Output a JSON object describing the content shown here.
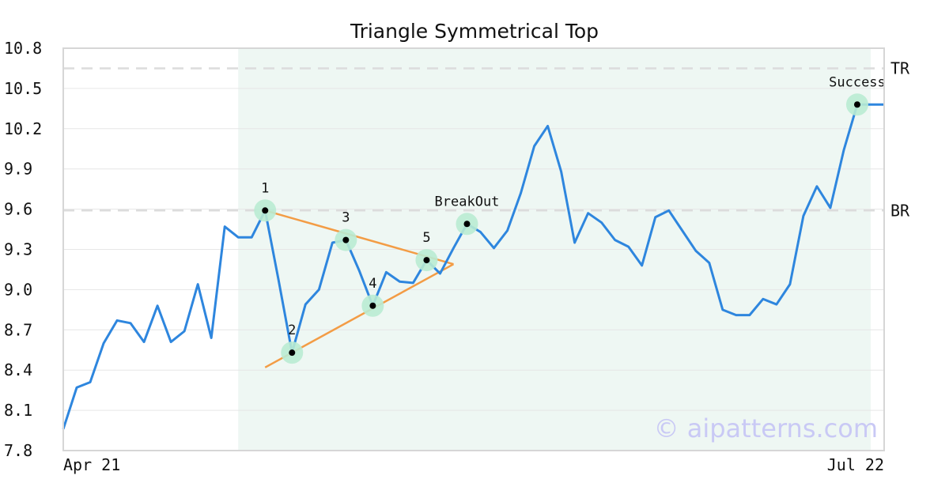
{
  "chart_data": {
    "type": "line",
    "title": "Triangle Symmetrical Top",
    "xlabel": "",
    "ylabel": "",
    "ylim": [
      7.8,
      10.8
    ],
    "yticks": [
      "7.8",
      "8.1",
      "8.4",
      "8.7",
      "9.0",
      "9.3",
      "9.6",
      "9.9",
      "10.2",
      "10.5",
      "10.8"
    ],
    "x_tick_labels": {
      "first": "Apr 21",
      "last": "Jul 22"
    },
    "grid": "horizontal",
    "series": [
      {
        "color": "#2e86de",
        "values": [
          7.96,
          8.27,
          8.31,
          8.6,
          8.77,
          8.75,
          8.61,
          8.88,
          8.61,
          8.69,
          9.04,
          8.64,
          9.47,
          9.39,
          9.39,
          9.59,
          9.07,
          8.53,
          8.89,
          9.0,
          9.35,
          9.37,
          9.14,
          8.88,
          9.13,
          9.06,
          9.05,
          9.22,
          9.12,
          9.31,
          9.49,
          9.43,
          9.31,
          9.44,
          9.72,
          10.07,
          10.22,
          9.88,
          9.35,
          9.57,
          9.5,
          9.37,
          9.32,
          9.18,
          9.54,
          9.59,
          9.44,
          9.29,
          9.2,
          8.85,
          8.81,
          8.81,
          8.93,
          8.89,
          9.04,
          9.55,
          9.77,
          9.61,
          10.04,
          10.38,
          10.38,
          10.38
        ]
      }
    ],
    "highlight_range": {
      "start_index": 13,
      "end_index": 60,
      "color": "#eef7f3"
    },
    "levels": [
      {
        "label": "TR",
        "value": 10.65
      },
      {
        "label": "BR",
        "value": 9.59
      }
    ],
    "trendlines": [
      {
        "color": "#f39c45",
        "from": {
          "x": 15.0,
          "y": 9.59
        },
        "to": {
          "x": 29.0,
          "y": 9.19
        }
      },
      {
        "color": "#f39c45",
        "from": {
          "x": 15.0,
          "y": 8.42
        },
        "to": {
          "x": 29.0,
          "y": 9.19
        }
      }
    ],
    "annotations": [
      {
        "label": "1",
        "x": 15,
        "y": 9.59,
        "label_pos": "above"
      },
      {
        "label": "2",
        "x": 17,
        "y": 8.53,
        "label_pos": "above"
      },
      {
        "label": "3",
        "x": 21,
        "y": 9.37,
        "label_pos": "above"
      },
      {
        "label": "4",
        "x": 23,
        "y": 8.88,
        "label_pos": "above"
      },
      {
        "label": "5",
        "x": 27,
        "y": 9.22,
        "label_pos": "above"
      },
      {
        "label": "BreakOut",
        "x": 30,
        "y": 9.49,
        "label_pos": "above"
      },
      {
        "label": "Success",
        "x": 59,
        "y": 10.38,
        "label_pos": "above"
      }
    ],
    "marker_colors": {
      "halo": "#b9ebd3",
      "dot": "#000000"
    },
    "watermark": "© aipatterns.com"
  }
}
